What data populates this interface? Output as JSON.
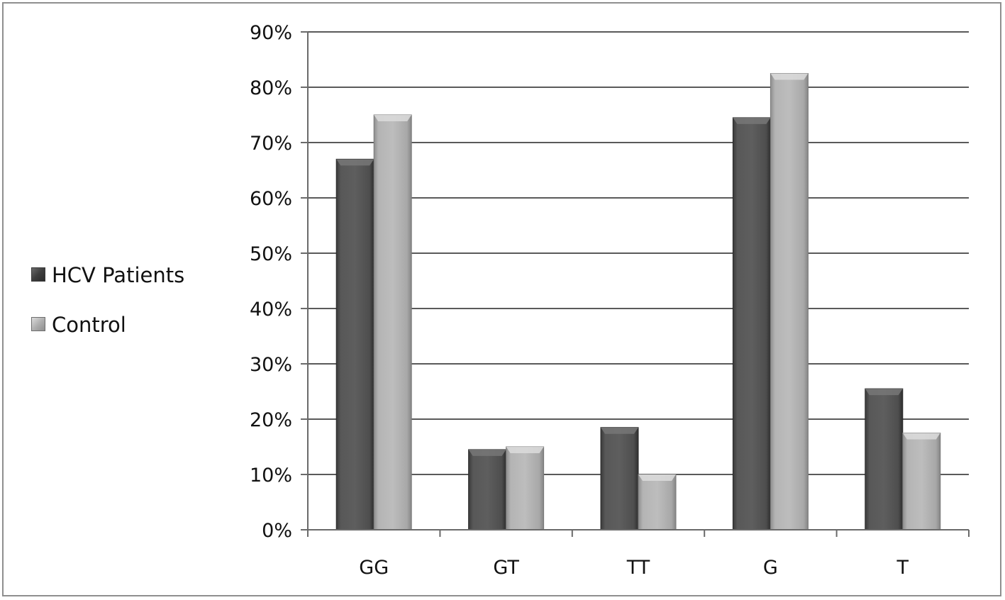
{
  "chart_data": {
    "type": "bar",
    "title": "",
    "xlabel": "",
    "ylabel": "",
    "categories": [
      "GG",
      "GT",
      "TT",
      "G",
      "T"
    ],
    "series": [
      {
        "name": "HCV Patients",
        "values": [
          67,
          14.5,
          18.5,
          74.5,
          25.5
        ],
        "color": "#555555"
      },
      {
        "name": "Control",
        "values": [
          75,
          15,
          10,
          82.5,
          17.5
        ],
        "color": "#b5b5b5"
      }
    ],
    "ylim": [
      0,
      90
    ],
    "y_ticks": [
      "0%",
      "10%",
      "20%",
      "30%",
      "40%",
      "50%",
      "60%",
      "70%",
      "80%",
      "90%"
    ],
    "grid": true,
    "legend_position": "left",
    "bar_style": "3d-beveled"
  }
}
